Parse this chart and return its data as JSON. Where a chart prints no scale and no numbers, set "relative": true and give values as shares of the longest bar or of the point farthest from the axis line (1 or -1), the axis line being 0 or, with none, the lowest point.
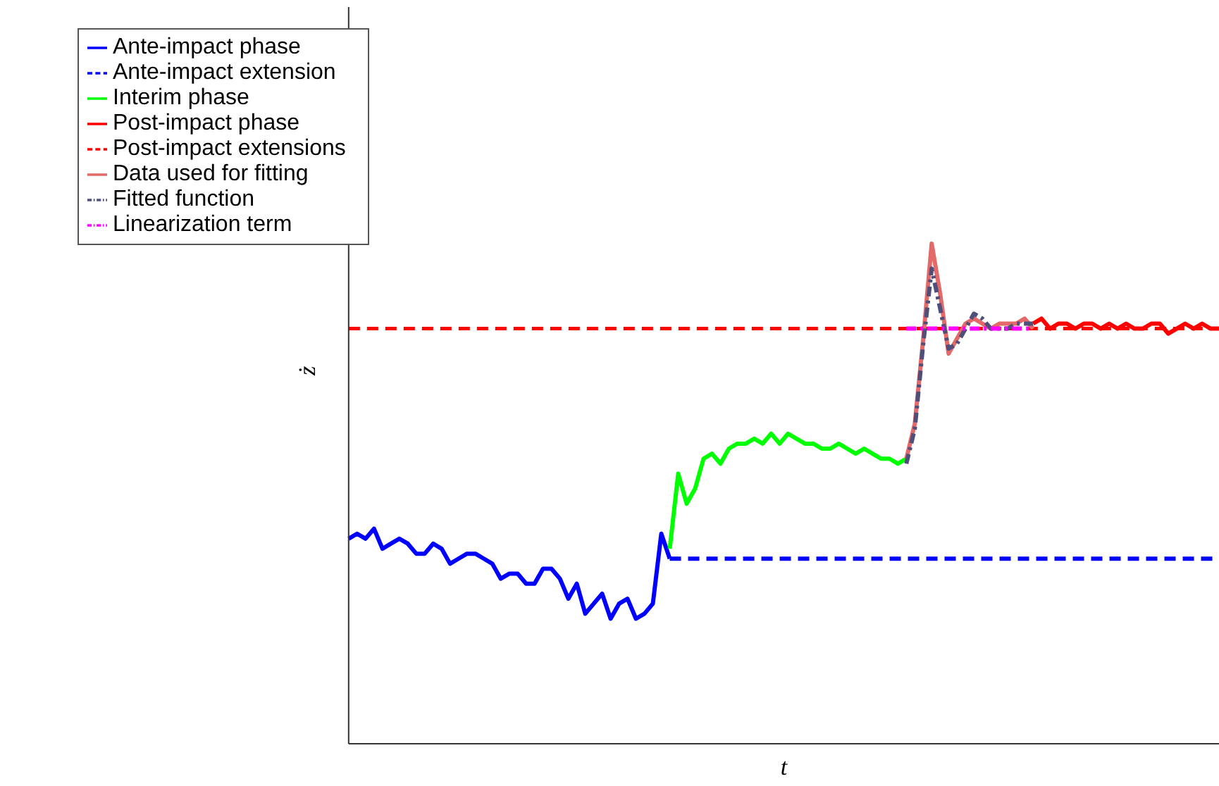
{
  "chart_data": {
    "type": "line",
    "relative": true,
    "xlabel": "t",
    "ylabel": "ż",
    "legend": "top left",
    "grid": false,
    "categories": [
      null,
      null,
      null,
      null,
      null,
      null,
      null,
      null,
      null,
      null,
      null,
      null,
      null,
      null,
      null,
      null,
      null,
      null,
      null,
      null,
      null,
      null,
      null,
      null,
      null,
      null,
      null,
      null,
      null,
      null,
      null,
      null,
      null,
      null,
      null,
      null,
      null,
      null,
      null,
      null,
      null,
      null,
      null,
      null,
      null,
      null,
      null,
      null,
      null,
      null,
      null,
      null,
      null,
      null,
      null,
      null,
      null,
      null,
      null,
      null,
      null,
      null,
      null,
      null,
      null,
      null,
      null,
      null,
      null,
      null,
      null,
      null,
      null,
      null,
      null,
      null,
      null,
      null,
      null,
      null,
      null,
      null,
      null,
      null,
      null,
      null,
      null,
      null,
      null,
      null,
      null,
      null,
      null,
      null,
      null,
      null,
      null,
      null,
      null,
      null,
      null,
      null,
      null,
      null
    ],
    "series": [
      {
        "name": "Ante-impact phase",
        "color": "#0000ff",
        "line_style": "solid",
        "values": [
          0.41,
          0.42,
          0.41,
          0.43,
          0.39,
          0.4,
          0.41,
          0.4,
          0.38,
          0.38,
          0.4,
          0.39,
          0.36,
          0.37,
          0.38,
          0.38,
          0.37,
          0.36,
          0.33,
          0.34,
          0.34,
          0.32,
          0.32,
          0.35,
          0.35,
          0.33,
          0.29,
          0.32,
          0.26,
          0.28,
          0.3,
          0.25,
          0.28,
          0.29,
          0.25,
          0.26,
          0.28,
          0.42,
          0.37,
          null,
          null,
          null,
          null,
          null,
          null,
          null,
          null,
          null,
          null,
          null,
          null,
          null,
          null,
          null,
          null,
          null,
          null,
          null,
          null,
          null,
          null,
          null,
          null,
          null,
          null,
          null,
          null,
          null,
          null,
          null,
          null,
          null,
          null,
          null,
          null,
          null,
          null,
          null,
          null,
          null,
          null,
          null,
          null,
          null,
          null,
          null,
          null,
          null,
          null,
          null,
          null,
          null,
          null,
          null,
          null,
          null,
          null,
          null,
          null,
          null,
          null,
          null,
          null,
          null
        ]
      },
      {
        "name": "Ante-impact extension",
        "color": "#0000ff",
        "line_style": "dashed",
        "values": [
          null,
          null,
          null,
          null,
          null,
          null,
          null,
          null,
          null,
          null,
          null,
          null,
          null,
          null,
          null,
          null,
          null,
          null,
          null,
          null,
          null,
          null,
          null,
          null,
          null,
          null,
          null,
          null,
          null,
          null,
          null,
          null,
          null,
          null,
          null,
          null,
          null,
          null,
          0.37,
          0.37,
          0.37,
          0.37,
          0.37,
          0.37,
          0.37,
          0.37,
          0.37,
          0.37,
          0.37,
          0.37,
          0.37,
          0.37,
          0.37,
          0.37,
          0.37,
          0.37,
          0.37,
          0.37,
          0.37,
          0.37,
          0.37,
          0.37,
          0.37,
          0.37,
          0.37,
          0.37,
          0.37,
          0.37,
          0.37,
          0.37,
          0.37,
          0.37,
          0.37,
          0.37,
          0.37,
          0.37,
          0.37,
          0.37,
          0.37,
          0.37,
          0.37,
          0.37,
          0.37,
          0.37,
          0.37,
          0.37,
          0.37,
          0.37,
          0.37,
          0.37,
          0.37,
          0.37,
          0.37,
          0.37,
          0.37,
          0.37,
          0.37,
          0.37,
          0.37,
          0.37,
          0.37,
          0.37,
          0.37,
          0.37
        ]
      },
      {
        "name": "Interim phase",
        "color": "#00ff00",
        "line_style": "solid",
        "values": [
          null,
          null,
          null,
          null,
          null,
          null,
          null,
          null,
          null,
          null,
          null,
          null,
          null,
          null,
          null,
          null,
          null,
          null,
          null,
          null,
          null,
          null,
          null,
          null,
          null,
          null,
          null,
          null,
          null,
          null,
          null,
          null,
          null,
          null,
          null,
          null,
          null,
          null,
          0.39,
          0.54,
          0.48,
          0.51,
          0.57,
          0.58,
          0.56,
          0.59,
          0.6,
          0.6,
          0.61,
          0.6,
          0.62,
          0.6,
          0.62,
          0.61,
          0.6,
          0.6,
          0.59,
          0.59,
          0.6,
          0.59,
          0.58,
          0.59,
          0.58,
          0.57,
          0.57,
          0.56,
          0.57,
          null,
          null,
          null,
          null,
          null,
          null,
          null,
          null,
          null,
          null,
          null,
          null,
          null,
          null,
          null,
          null,
          null,
          null,
          null,
          null,
          null,
          null,
          null,
          null,
          null,
          null,
          null,
          null,
          null,
          null,
          null,
          null,
          null,
          null,
          null,
          null,
          null
        ]
      },
      {
        "name": "Post-impact phase",
        "color": "#ff0000",
        "line_style": "solid",
        "values": [
          null,
          null,
          null,
          null,
          null,
          null,
          null,
          null,
          null,
          null,
          null,
          null,
          null,
          null,
          null,
          null,
          null,
          null,
          null,
          null,
          null,
          null,
          null,
          null,
          null,
          null,
          null,
          null,
          null,
          null,
          null,
          null,
          null,
          null,
          null,
          null,
          null,
          null,
          null,
          null,
          null,
          null,
          null,
          null,
          null,
          null,
          null,
          null,
          null,
          null,
          null,
          null,
          null,
          null,
          null,
          null,
          null,
          null,
          null,
          null,
          null,
          null,
          null,
          null,
          null,
          null,
          null,
          null,
          null,
          null,
          null,
          null,
          null,
          null,
          null,
          null,
          null,
          null,
          null,
          null,
          null,
          0.84,
          0.85,
          0.83,
          0.84,
          0.84,
          0.83,
          0.84,
          0.84,
          0.83,
          0.84,
          0.83,
          0.84,
          0.83,
          0.83,
          0.84,
          0.84,
          0.82,
          0.83,
          0.84,
          0.83,
          0.84,
          0.83,
          0.83
        ]
      },
      {
        "name": "Post-impact extensions",
        "color": "#ff0000",
        "line_style": "dashed",
        "values": [
          0.83,
          0.83,
          0.83,
          0.83,
          0.83,
          0.83,
          0.83,
          0.83,
          0.83,
          0.83,
          0.83,
          0.83,
          0.83,
          0.83,
          0.83,
          0.83,
          0.83,
          0.83,
          0.83,
          0.83,
          0.83,
          0.83,
          0.83,
          0.83,
          0.83,
          0.83,
          0.83,
          0.83,
          0.83,
          0.83,
          0.83,
          0.83,
          0.83,
          0.83,
          0.83,
          0.83,
          0.83,
          0.83,
          0.83,
          0.83,
          0.83,
          0.83,
          0.83,
          0.83,
          0.83,
          0.83,
          0.83,
          0.83,
          0.83,
          0.83,
          0.83,
          0.83,
          0.83,
          0.83,
          0.83,
          0.83,
          0.83,
          0.83,
          0.83,
          0.83,
          0.83,
          0.83,
          0.83,
          0.83,
          0.83,
          0.83,
          0.83,
          0.83,
          0.83,
          0.83,
          0.83,
          0.83,
          0.83,
          0.83,
          0.83,
          0.83,
          0.83,
          0.83,
          0.83,
          0.83,
          0.83,
          0.83,
          0.83,
          0.83,
          0.83,
          0.83,
          0.83,
          0.83,
          0.83,
          0.83,
          0.83,
          0.83,
          0.83,
          0.83,
          0.83,
          0.83,
          0.83,
          0.83,
          0.83,
          0.83,
          0.83,
          0.83,
          0.83,
          0.83
        ]
      },
      {
        "name": "Data used for fitting",
        "color": "#e36a68",
        "line_style": "solid",
        "values": [
          null,
          null,
          null,
          null,
          null,
          null,
          null,
          null,
          null,
          null,
          null,
          null,
          null,
          null,
          null,
          null,
          null,
          null,
          null,
          null,
          null,
          null,
          null,
          null,
          null,
          null,
          null,
          null,
          null,
          null,
          null,
          null,
          null,
          null,
          null,
          null,
          null,
          null,
          null,
          null,
          null,
          null,
          null,
          null,
          null,
          null,
          null,
          null,
          null,
          null,
          null,
          null,
          null,
          null,
          null,
          null,
          null,
          null,
          null,
          null,
          null,
          null,
          null,
          null,
          null,
          null,
          0.57,
          0.64,
          0.81,
          1,
          0.9,
          0.78,
          0.81,
          0.84,
          0.85,
          0.84,
          0.83,
          0.84,
          0.84,
          0.84,
          0.85,
          0.83,
          null,
          null,
          null,
          null,
          null,
          null,
          null,
          null,
          null,
          null,
          null,
          null,
          null,
          null,
          null,
          null,
          null,
          null,
          null,
          null,
          null,
          null
        ]
      },
      {
        "name": "Fitted function",
        "color": "#4f4f7a",
        "line_style": "dashdot",
        "values": [
          null,
          null,
          null,
          null,
          null,
          null,
          null,
          null,
          null,
          null,
          null,
          null,
          null,
          null,
          null,
          null,
          null,
          null,
          null,
          null,
          null,
          null,
          null,
          null,
          null,
          null,
          null,
          null,
          null,
          null,
          null,
          null,
          null,
          null,
          null,
          null,
          null,
          null,
          null,
          null,
          null,
          null,
          null,
          null,
          null,
          null,
          null,
          null,
          null,
          null,
          null,
          null,
          null,
          null,
          null,
          null,
          null,
          null,
          null,
          null,
          null,
          null,
          null,
          null,
          null,
          null,
          0.56,
          0.63,
          0.8,
          0.95,
          0.87,
          0.79,
          0.8,
          0.83,
          0.86,
          0.85,
          0.83,
          0.83,
          0.83,
          0.84,
          0.84,
          0.84,
          null,
          null,
          null,
          null,
          null,
          null,
          null,
          null,
          null,
          null,
          null,
          null,
          null,
          null,
          null,
          null,
          null,
          null,
          null,
          null,
          null,
          null
        ]
      },
      {
        "name": "Linearization term",
        "color": "#ff00ff",
        "line_style": "dashdot",
        "values": [
          null,
          null,
          null,
          null,
          null,
          null,
          null,
          null,
          null,
          null,
          null,
          null,
          null,
          null,
          null,
          null,
          null,
          null,
          null,
          null,
          null,
          null,
          null,
          null,
          null,
          null,
          null,
          null,
          null,
          null,
          null,
          null,
          null,
          null,
          null,
          null,
          null,
          null,
          null,
          null,
          null,
          null,
          null,
          null,
          null,
          null,
          null,
          null,
          null,
          null,
          null,
          null,
          null,
          null,
          null,
          null,
          null,
          null,
          null,
          null,
          null,
          null,
          null,
          null,
          null,
          null,
          0.83,
          0.83,
          0.83,
          0.83,
          0.83,
          0.83,
          0.83,
          0.83,
          0.83,
          0.83,
          0.83,
          0.83,
          0.83,
          0.83,
          0.83,
          0.83,
          null,
          null,
          null,
          null,
          null,
          null,
          null,
          null,
          null,
          null,
          null,
          null,
          null,
          null,
          null,
          null,
          null,
          null,
          null,
          null,
          null,
          null
        ]
      }
    ]
  }
}
